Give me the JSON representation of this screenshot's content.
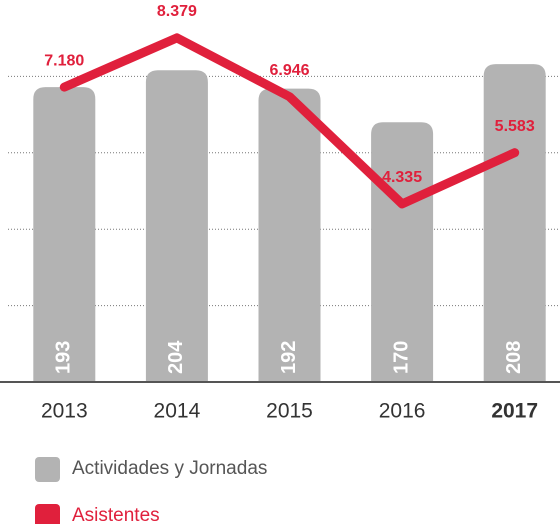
{
  "chart_data": {
    "type": "bar",
    "categories": [
      "2013",
      "2014",
      "2015",
      "2016",
      "2017"
    ],
    "series": [
      {
        "name": "Actividades y Jornadas",
        "type": "bar",
        "color": "#b3b3b3",
        "values": [
          193,
          204,
          192,
          170,
          208
        ]
      },
      {
        "name": "Asistentes",
        "type": "line",
        "axis": "y2",
        "color": "#e0203c",
        "values": [
          7180,
          8379,
          6946,
          4335,
          5583
        ],
        "value_labels": [
          "7.180",
          "8.379",
          "6.946",
          "4.335",
          "5.583"
        ]
      }
    ],
    "ylim": [
      0,
      250
    ],
    "yticks": [
      0,
      50,
      100,
      150,
      200
    ],
    "y2lim": [
      0,
      9300
    ],
    "grid": true
  }
}
